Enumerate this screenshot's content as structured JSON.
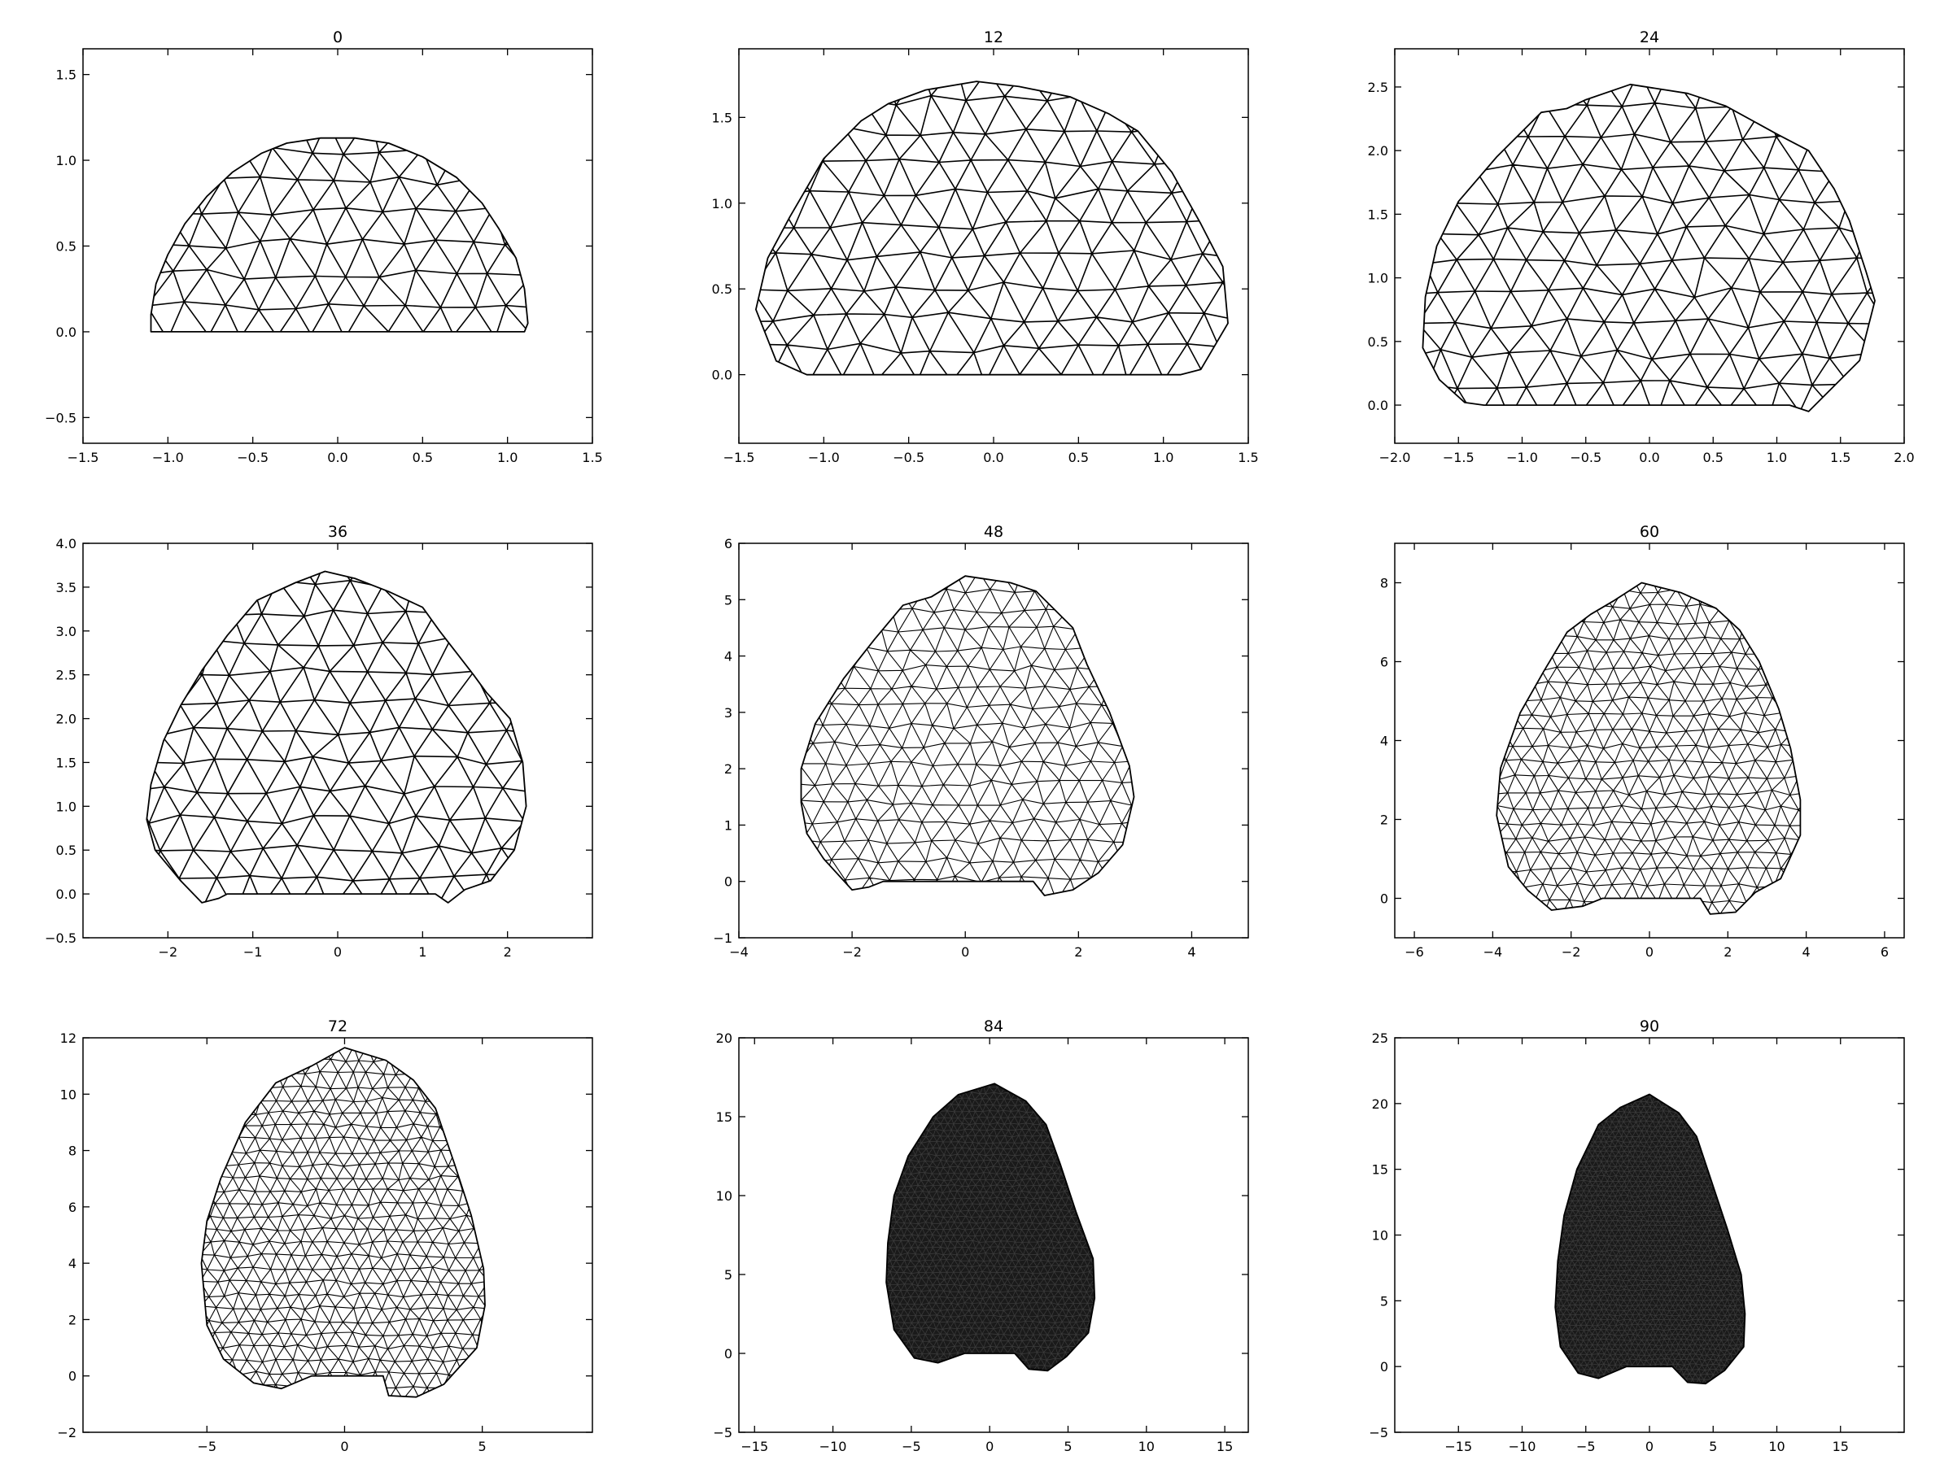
{
  "figure": {
    "background": "#ffffff",
    "mesh_color": "#000000"
  },
  "chart_data": [
    {
      "type": "mesh",
      "title": "0",
      "xlim": [
        -1.5,
        1.5
      ],
      "ylim": [
        -0.65,
        1.65
      ],
      "xticks": [
        "−1.5",
        "−1.0",
        "−0.5",
        "0.0",
        "0.5",
        "1.0",
        "1.5"
      ],
      "xtick_values": [
        -1.5,
        -1.0,
        -0.5,
        0.0,
        0.5,
        1.0,
        1.5
      ],
      "yticks": [
        "−0.5",
        "0.0",
        "0.5",
        "1.0",
        "1.5"
      ],
      "ytick_values": [
        -0.5,
        0.0,
        0.5,
        1.0,
        1.5
      ],
      "outline": [
        [
          -1.1,
          0.0
        ],
        [
          1.1,
          0.0
        ],
        [
          1.12,
          0.05
        ],
        [
          1.1,
          0.25
        ],
        [
          1.05,
          0.43
        ],
        [
          0.95,
          0.6
        ],
        [
          0.85,
          0.75
        ],
        [
          0.7,
          0.9
        ],
        [
          0.5,
          1.02
        ],
        [
          0.3,
          1.1
        ],
        [
          0.1,
          1.13
        ],
        [
          -0.1,
          1.13
        ],
        [
          -0.3,
          1.1
        ],
        [
          -0.45,
          1.04
        ],
        [
          -0.62,
          0.93
        ],
        [
          -0.77,
          0.79
        ],
        [
          -0.9,
          0.63
        ],
        [
          -1.0,
          0.45
        ],
        [
          -1.07,
          0.28
        ],
        [
          -1.1,
          0.1
        ]
      ],
      "mesh_spacing": 0.2
    },
    {
      "type": "mesh",
      "title": "12",
      "xlim": [
        -1.5,
        1.5
      ],
      "ylim": [
        -0.4,
        1.9
      ],
      "xticks": [
        "−1.5",
        "−1.0",
        "−0.5",
        "0.0",
        "0.5",
        "1.0",
        "1.5"
      ],
      "xtick_values": [
        -1.5,
        -1.0,
        -0.5,
        0.0,
        0.5,
        1.0,
        1.5
      ],
      "yticks": [
        "0.0",
        "0.5",
        "1.0",
        "1.5"
      ],
      "ytick_values": [
        0.0,
        0.5,
        1.0,
        1.5
      ],
      "outline": [
        [
          -1.1,
          0.0
        ],
        [
          1.1,
          0.0
        ],
        [
          1.22,
          0.03
        ],
        [
          1.38,
          0.3
        ],
        [
          1.35,
          0.63
        ],
        [
          1.22,
          0.88
        ],
        [
          1.05,
          1.18
        ],
        [
          0.85,
          1.42
        ],
        [
          0.68,
          1.52
        ],
        [
          0.45,
          1.62
        ],
        [
          0.15,
          1.68
        ],
        [
          -0.1,
          1.71
        ],
        [
          -0.4,
          1.66
        ],
        [
          -0.62,
          1.58
        ],
        [
          -0.78,
          1.48
        ],
        [
          -1.0,
          1.26
        ],
        [
          -1.2,
          0.92
        ],
        [
          -1.33,
          0.68
        ],
        [
          -1.4,
          0.38
        ],
        [
          -1.28,
          0.08
        ],
        [
          -1.17,
          0.03
        ]
      ],
      "mesh_spacing": 0.22
    },
    {
      "type": "mesh",
      "title": "24",
      "xlim": [
        -2.0,
        2.0
      ],
      "ylim": [
        -0.3,
        2.8
      ],
      "xticks": [
        "−2.0",
        "−1.5",
        "−1.0",
        "−0.5",
        "0.0",
        "0.5",
        "1.0",
        "1.5",
        "2.0"
      ],
      "xtick_values": [
        -2.0,
        -1.5,
        -1.0,
        -0.5,
        0.0,
        0.5,
        1.0,
        1.5,
        2.0
      ],
      "yticks": [
        "0.0",
        "0.5",
        "1.0",
        "1.5",
        "2.0",
        "2.5"
      ],
      "ytick_values": [
        0.0,
        0.5,
        1.0,
        1.5,
        2.0,
        2.5
      ],
      "outline": [
        [
          -1.3,
          0.0
        ],
        [
          1.1,
          0.0
        ],
        [
          1.25,
          -0.05
        ],
        [
          1.4,
          0.1
        ],
        [
          1.65,
          0.35
        ],
        [
          1.77,
          0.82
        ],
        [
          1.7,
          1.05
        ],
        [
          1.57,
          1.45
        ],
        [
          1.45,
          1.7
        ],
        [
          1.25,
          2.0
        ],
        [
          1.0,
          2.13
        ],
        [
          0.6,
          2.35
        ],
        [
          0.3,
          2.45
        ],
        [
          -0.15,
          2.52
        ],
        [
          -0.5,
          2.4
        ],
        [
          -0.65,
          2.33
        ],
        [
          -0.85,
          2.3
        ],
        [
          -1.2,
          1.95
        ],
        [
          -1.5,
          1.6
        ],
        [
          -1.67,
          1.25
        ],
        [
          -1.76,
          0.85
        ],
        [
          -1.78,
          0.45
        ],
        [
          -1.65,
          0.2
        ],
        [
          -1.45,
          0.02
        ]
      ],
      "mesh_spacing": 0.24
    },
    {
      "type": "mesh",
      "title": "36",
      "xlim": [
        -3.0,
        3.0
      ],
      "ylim": [
        -0.5,
        4.0
      ],
      "xticks": [
        "−2",
        "−1",
        "0",
        "1",
        "2"
      ],
      "xtick_values": [
        -2,
        -1,
        0,
        1,
        2
      ],
      "yticks": [
        "−0.5",
        "0.0",
        "0.5",
        "1.0",
        "1.5",
        "2.0",
        "2.5",
        "3.0",
        "3.5",
        "4.0"
      ],
      "ytick_values": [
        -0.5,
        0.0,
        0.5,
        1.0,
        1.5,
        2.0,
        2.5,
        3.0,
        3.5,
        4.0
      ],
      "outline": [
        [
          -1.3,
          0.0
        ],
        [
          1.15,
          0.0
        ],
        [
          1.3,
          -0.1
        ],
        [
          1.5,
          0.05
        ],
        [
          1.8,
          0.15
        ],
        [
          2.08,
          0.5
        ],
        [
          2.22,
          1.0
        ],
        [
          2.18,
          1.5
        ],
        [
          2.03,
          2.0
        ],
        [
          1.75,
          2.3
        ],
        [
          1.6,
          2.5
        ],
        [
          1.2,
          3.0
        ],
        [
          1.0,
          3.27
        ],
        [
          0.6,
          3.45
        ],
        [
          0.2,
          3.6
        ],
        [
          -0.15,
          3.68
        ],
        [
          -0.5,
          3.55
        ],
        [
          -0.95,
          3.35
        ],
        [
          -1.3,
          2.95
        ],
        [
          -1.6,
          2.55
        ],
        [
          -1.85,
          2.15
        ],
        [
          -2.05,
          1.75
        ],
        [
          -2.2,
          1.25
        ],
        [
          -2.25,
          0.85
        ],
        [
          -2.15,
          0.5
        ],
        [
          -1.85,
          0.15
        ],
        [
          -1.6,
          -0.1
        ],
        [
          -1.4,
          -0.05
        ]
      ],
      "mesh_spacing": 0.24
    },
    {
      "type": "mesh",
      "title": "48",
      "xlim": [
        -4.0,
        5.0
      ],
      "ylim": [
        -1.0,
        6.0
      ],
      "xticks": [
        "−4",
        "−2",
        "0",
        "2",
        "4"
      ],
      "xtick_values": [
        -4,
        -2,
        0,
        2,
        4
      ],
      "yticks": [
        "−1",
        "0",
        "1",
        "2",
        "3",
        "4",
        "5",
        "6"
      ],
      "ytick_values": [
        -1,
        0,
        1,
        2,
        3,
        4,
        5,
        6
      ],
      "outline": [
        [
          -1.1,
          0.0
        ],
        [
          1.2,
          0.0
        ],
        [
          1.4,
          -0.25
        ],
        [
          1.9,
          -0.15
        ],
        [
          2.35,
          0.15
        ],
        [
          2.78,
          0.65
        ],
        [
          2.98,
          1.5
        ],
        [
          2.9,
          2.05
        ],
        [
          2.55,
          3.0
        ],
        [
          2.15,
          3.85
        ],
        [
          1.9,
          4.5
        ],
        [
          1.25,
          5.15
        ],
        [
          0.8,
          5.3
        ],
        [
          0.0,
          5.42
        ],
        [
          -0.6,
          5.05
        ],
        [
          -1.1,
          4.9
        ],
        [
          -1.6,
          4.3
        ],
        [
          -2.15,
          3.6
        ],
        [
          -2.65,
          2.8
        ],
        [
          -2.9,
          2.0
        ],
        [
          -2.9,
          1.4
        ],
        [
          -2.8,
          0.85
        ],
        [
          -2.5,
          0.4
        ],
        [
          -2.0,
          -0.15
        ],
        [
          -1.7,
          -0.1
        ],
        [
          -1.45,
          0.0
        ]
      ],
      "mesh_spacing": 0.34
    },
    {
      "type": "mesh",
      "title": "60",
      "xlim": [
        -6.5,
        6.5
      ],
      "ylim": [
        -1.0,
        9.0
      ],
      "xticks": [
        "−6",
        "−4",
        "−2",
        "0",
        "2",
        "4",
        "6"
      ],
      "xtick_values": [
        -6,
        -4,
        -2,
        0,
        2,
        4,
        6
      ],
      "yticks": [
        "0",
        "2",
        "4",
        "6",
        "8"
      ],
      "ytick_values": [
        0,
        2,
        4,
        6,
        8
      ],
      "outline": [
        [
          -1.2,
          0.0
        ],
        [
          1.3,
          0.0
        ],
        [
          1.55,
          -0.4
        ],
        [
          2.2,
          -0.35
        ],
        [
          2.7,
          0.15
        ],
        [
          3.35,
          0.5
        ],
        [
          3.85,
          1.6
        ],
        [
          3.85,
          2.5
        ],
        [
          3.6,
          3.8
        ],
        [
          3.3,
          4.8
        ],
        [
          2.8,
          6.0
        ],
        [
          2.3,
          6.8
        ],
        [
          1.7,
          7.35
        ],
        [
          0.8,
          7.75
        ],
        [
          -0.2,
          8.0
        ],
        [
          -0.9,
          7.55
        ],
        [
          -1.5,
          7.2
        ],
        [
          -2.1,
          6.75
        ],
        [
          -2.7,
          5.75
        ],
        [
          -3.3,
          4.7
        ],
        [
          -3.8,
          3.3
        ],
        [
          -3.9,
          2.1
        ],
        [
          -3.6,
          0.8
        ],
        [
          -3.1,
          0.2
        ],
        [
          -2.5,
          -0.3
        ],
        [
          -1.7,
          -0.2
        ]
      ],
      "mesh_spacing": 0.45
    },
    {
      "type": "mesh",
      "title": "72",
      "xlim": [
        -9.5,
        9.0
      ],
      "ylim": [
        -2.0,
        12.0
      ],
      "xticks": [
        "−5",
        "0",
        "5"
      ],
      "xtick_values": [
        -5,
        0,
        5
      ],
      "yticks": [
        "−2",
        "0",
        "2",
        "4",
        "6",
        "8",
        "10",
        "12"
      ],
      "ytick_values": [
        -2,
        0,
        2,
        4,
        6,
        8,
        10,
        12
      ],
      "outline": [
        [
          -1.2,
          0.0
        ],
        [
          1.4,
          0.0
        ],
        [
          1.6,
          -0.7
        ],
        [
          2.6,
          -0.75
        ],
        [
          3.6,
          -0.3
        ],
        [
          4.8,
          1.0
        ],
        [
          5.1,
          2.5
        ],
        [
          5.05,
          3.8
        ],
        [
          4.6,
          5.7
        ],
        [
          4.0,
          7.5
        ],
        [
          3.3,
          9.5
        ],
        [
          2.5,
          10.5
        ],
        [
          1.5,
          11.2
        ],
        [
          0.0,
          11.65
        ],
        [
          -1.2,
          11.0
        ],
        [
          -2.5,
          10.4
        ],
        [
          -3.6,
          9.0
        ],
        [
          -4.5,
          7.0
        ],
        [
          -5.0,
          5.5
        ],
        [
          -5.2,
          4.0
        ],
        [
          -5.0,
          1.8
        ],
        [
          -4.4,
          0.6
        ],
        [
          -3.3,
          -0.25
        ],
        [
          -2.3,
          -0.45
        ]
      ],
      "mesh_spacing": 0.5
    },
    {
      "type": "mesh",
      "title": "84",
      "xlim": [
        -16.0,
        16.5
      ],
      "ylim": [
        -5.0,
        20.0
      ],
      "xticks": [
        "−15",
        "−10",
        "−5",
        "0",
        "5",
        "10",
        "15"
      ],
      "xtick_values": [
        -15,
        -10,
        -5,
        0,
        5,
        10,
        15
      ],
      "yticks": [
        "−5",
        "0",
        "5",
        "10",
        "15",
        "20"
      ],
      "ytick_values": [
        -5,
        0,
        5,
        10,
        15,
        20
      ],
      "outline": [
        [
          -1.6,
          0.0
        ],
        [
          1.6,
          0.0
        ],
        [
          2.5,
          -1.0
        ],
        [
          3.7,
          -1.1
        ],
        [
          4.9,
          -0.2
        ],
        [
          6.3,
          1.3
        ],
        [
          6.7,
          3.5
        ],
        [
          6.6,
          6.0
        ],
        [
          5.5,
          9.0
        ],
        [
          4.5,
          12.0
        ],
        [
          3.6,
          14.5
        ],
        [
          2.3,
          16.0
        ],
        [
          0.3,
          17.1
        ],
        [
          -2.0,
          16.4
        ],
        [
          -3.6,
          15.0
        ],
        [
          -5.2,
          12.5
        ],
        [
          -6.1,
          10.0
        ],
        [
          -6.5,
          7.0
        ],
        [
          -6.6,
          4.5
        ],
        [
          -6.1,
          1.5
        ],
        [
          -4.8,
          -0.3
        ],
        [
          -3.3,
          -0.6
        ]
      ],
      "mesh_spacing": 0.55
    },
    {
      "type": "mesh",
      "title": "90",
      "xlim": [
        -20.0,
        20.0
      ],
      "ylim": [
        -5.0,
        25.0
      ],
      "xticks": [
        "−15",
        "−10",
        "−5",
        "0",
        "5",
        "10",
        "15"
      ],
      "xtick_values": [
        -15,
        -10,
        -5,
        0,
        5,
        10,
        15
      ],
      "yticks": [
        "−5",
        "0",
        "5",
        "10",
        "15",
        "20",
        "25"
      ],
      "ytick_values": [
        -5,
        0,
        5,
        10,
        15,
        20,
        25
      ],
      "outline": [
        [
          -1.8,
          0.0
        ],
        [
          1.8,
          0.0
        ],
        [
          3.0,
          -1.2
        ],
        [
          4.4,
          -1.3
        ],
        [
          5.9,
          -0.3
        ],
        [
          7.4,
          1.5
        ],
        [
          7.5,
          4.0
        ],
        [
          7.2,
          7.0
        ],
        [
          6.1,
          10.5
        ],
        [
          4.9,
          14.0
        ],
        [
          3.7,
          17.5
        ],
        [
          2.3,
          19.3
        ],
        [
          0.0,
          20.7
        ],
        [
          -2.3,
          19.7
        ],
        [
          -4.0,
          18.4
        ],
        [
          -5.7,
          15.0
        ],
        [
          -6.7,
          11.5
        ],
        [
          -7.2,
          8.0
        ],
        [
          -7.4,
          4.5
        ],
        [
          -7.0,
          1.5
        ],
        [
          -5.6,
          -0.5
        ],
        [
          -4.0,
          -0.9
        ]
      ],
      "mesh_spacing": 0.6
    }
  ]
}
